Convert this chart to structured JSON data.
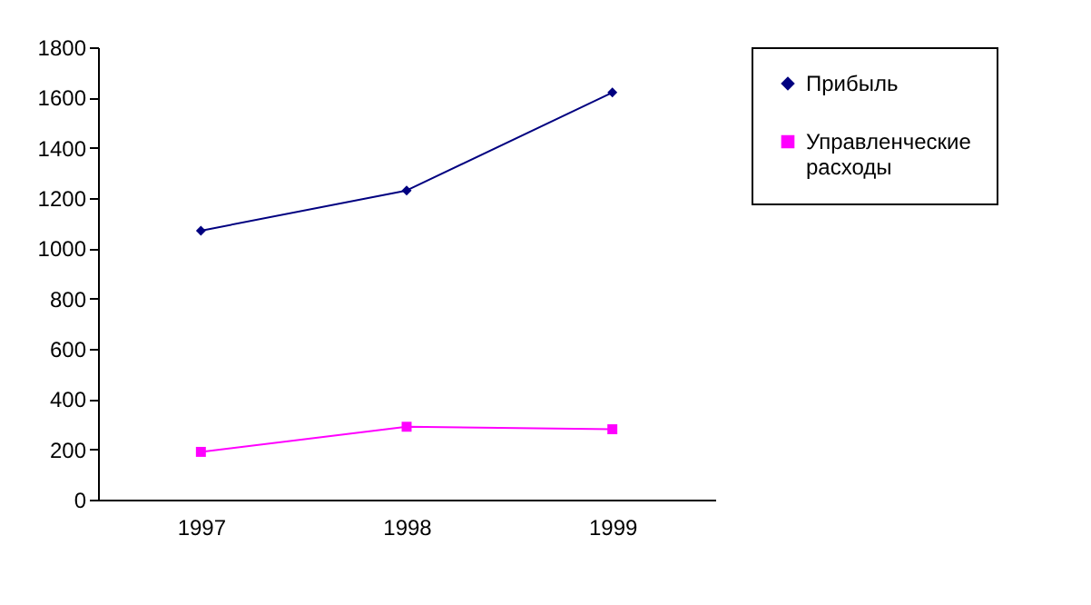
{
  "chart_data": {
    "type": "line",
    "categories": [
      "1997",
      "1998",
      "1999"
    ],
    "series": [
      {
        "name": "Прибыль",
        "color": "#000080",
        "values": [
          1070,
          1230,
          1620
        ],
        "marker": "diamond"
      },
      {
        "name": "Управленческие расходы",
        "color": "#ff00ff",
        "values": [
          190,
          290,
          280
        ],
        "marker": "square"
      }
    ],
    "ylim": [
      0,
      1800
    ],
    "yticks": [
      0,
      200,
      400,
      600,
      800,
      1000,
      1200,
      1400,
      1600,
      1800
    ],
    "grid": false,
    "legend": "right"
  }
}
